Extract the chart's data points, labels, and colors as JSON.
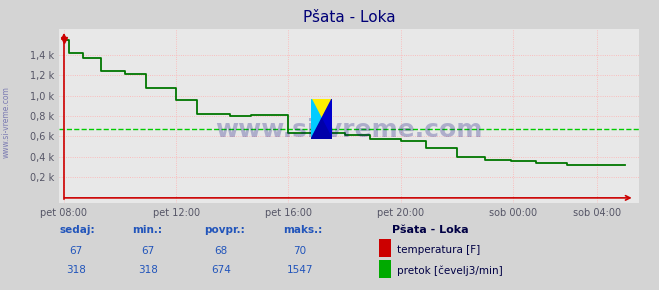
{
  "title": "Pšata - Loka",
  "bg_color": "#d4d4d4",
  "plot_bg_color": "#e8e8e8",
  "grid_color": "#ffb0b0",
  "ylabel": "",
  "xlabel": "",
  "ylim": [
    0,
    1600
  ],
  "yticks": [
    200,
    400,
    600,
    800,
    1000,
    1200,
    1400
  ],
  "ytick_labels": [
    "0,2 k",
    "0,4 k",
    "0,6 k",
    "0,8 k",
    "1,0 k",
    "1,2 k",
    "1,4 k"
  ],
  "xtick_positions": [
    0,
    240,
    480,
    720,
    960,
    1140
  ],
  "xtick_labels": [
    "pet 08:00",
    "pet 12:00",
    "pet 16:00",
    "pet 20:00",
    "sob 00:00",
    "sob 04:00"
  ],
  "flow_color": "#007700",
  "flow_linewidth": 1.3,
  "avg_line_value": 674,
  "avg_line_color": "#00cc00",
  "temp_color": "#cc0000",
  "axis_arrow_color": "#cc0000",
  "watermark_text": "www.si-vreme.com",
  "sidebar_text": "www.si-vreme.com",
  "sidebar_color": "#6666aa",
  "flow_x": [
    0,
    10,
    10,
    40,
    40,
    80,
    80,
    130,
    130,
    175,
    175,
    240,
    240,
    285,
    285,
    355,
    355,
    400,
    400,
    480,
    480,
    600,
    600,
    655,
    655,
    720,
    720,
    775,
    775,
    840,
    840,
    900,
    900,
    955,
    955,
    1010,
    1010,
    1075,
    1075,
    1140,
    1140,
    1200
  ],
  "flow_y": [
    1547,
    1547,
    1420,
    1420,
    1370,
    1370,
    1240,
    1240,
    1210,
    1210,
    1070,
    1070,
    960,
    960,
    820,
    820,
    800,
    800,
    810,
    810,
    635,
    635,
    615,
    615,
    575,
    575,
    555,
    555,
    490,
    490,
    395,
    395,
    375,
    375,
    365,
    365,
    340,
    340,
    318,
    318,
    318,
    318
  ],
  "table_headers": [
    "sedaj:",
    "min.:",
    "povpr.:",
    "maks.:"
  ],
  "table_header_color": "#2255bb",
  "table_row1": [
    "67",
    "67",
    "68",
    "70"
  ],
  "table_row2": [
    "318",
    "318",
    "674",
    "1547"
  ],
  "table_text_color": "#2255bb",
  "legend_title": "Pšata - Loka",
  "legend_items": [
    "temperatura [F]",
    "pretok [čevelj3/min]"
  ],
  "legend_colors": [
    "#cc0000",
    "#00aa00"
  ]
}
